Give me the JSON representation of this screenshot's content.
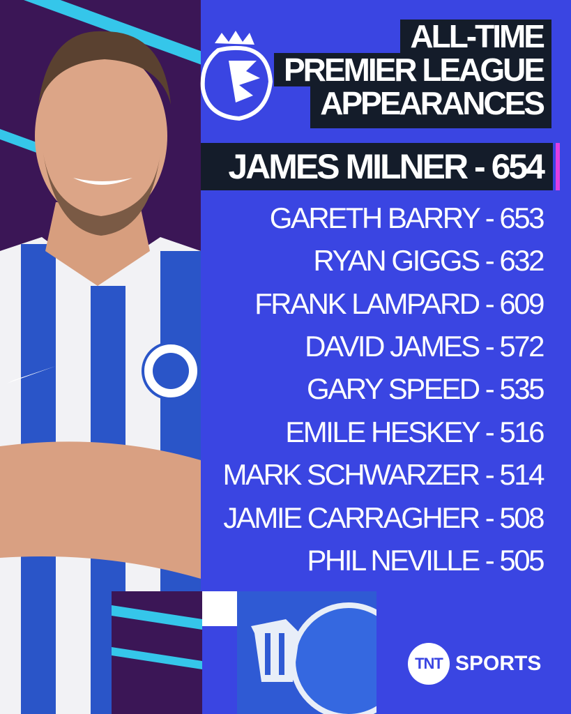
{
  "title": {
    "line1": "ALL-TIME",
    "line2": "PREMIER LEAGUE",
    "line3": "APPEARANCES"
  },
  "leader": {
    "name": "JAMES MILNER",
    "appearances": "654",
    "text": "JAMES MILNER - 654"
  },
  "list": [
    {
      "text": "GARETH BARRY - 653"
    },
    {
      "text": "RYAN GIGGS - 632"
    },
    {
      "text": "FRANK LAMPARD - 609"
    },
    {
      "text": "DAVID JAMES - 572"
    },
    {
      "text": "GARY SPEED - 535"
    },
    {
      "text": "EMILE HESKEY - 516"
    },
    {
      "text": "MARK SCHWARZER - 514"
    },
    {
      "text": "JAMIE CARRAGHER - 508"
    },
    {
      "text": "PHIL NEVILLE - 505"
    }
  ],
  "branding": {
    "tnt_mark": "TNT",
    "tnt_text": "SPORTS",
    "league_logo": "premier-league-lion-icon"
  },
  "colors": {
    "background": "#3a45e2",
    "panel": "#141c2a",
    "accent": "#e23ee0",
    "left_panel": "#3b1656",
    "stripe": "#35c6ea"
  }
}
